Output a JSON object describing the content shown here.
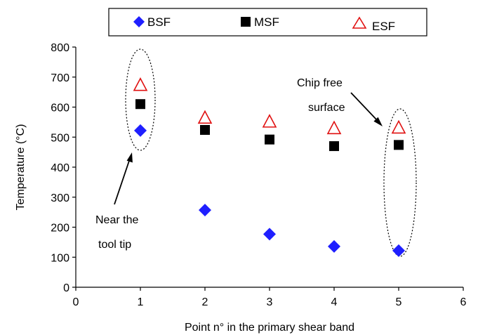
{
  "chart_data": {
    "type": "scatter",
    "title": "",
    "xlabel": "Point n° in the primary shear band",
    "ylabel": "Temperature (°C)",
    "xlim": [
      0,
      6
    ],
    "ylim": [
      0,
      800
    ],
    "x_ticks": [
      0,
      1,
      2,
      3,
      4,
      5,
      6
    ],
    "y_ticks": [
      0,
      100,
      200,
      300,
      400,
      500,
      600,
      700,
      800
    ],
    "grid": false,
    "legend_position": "top",
    "series": [
      {
        "name": "BSF",
        "marker": "diamond",
        "color": "#1f1fff",
        "x": [
          1,
          2,
          3,
          4,
          5
        ],
        "values": [
          522,
          257,
          177,
          136,
          122
        ]
      },
      {
        "name": "MSF",
        "marker": "square",
        "color": "#000000",
        "x": [
          1,
          2,
          3,
          4,
          5
        ],
        "values": [
          610,
          524,
          492,
          470,
          474
        ]
      },
      {
        "name": "ESF",
        "marker": "triangle-open",
        "color": "#e01010",
        "x": [
          1,
          2,
          3,
          4,
          5
        ],
        "values": [
          672,
          563,
          550,
          528,
          530
        ]
      }
    ],
    "annotations": [
      {
        "text_lines": [
          "Near the",
          "tool tip"
        ],
        "arrow_to_x": 1,
        "arrow_to_y": 455
      },
      {
        "text_lines": [
          "Chip free",
          "surface"
        ],
        "arrow_to_x": 4.85,
        "arrow_to_y": 540
      }
    ],
    "highlights": [
      {
        "shape": "dotted-ellipse",
        "x": 1,
        "y_range": [
          460,
          720
        ]
      },
      {
        "shape": "dotted-ellipse",
        "x": 5,
        "y_range": [
          95,
          590
        ]
      }
    ]
  }
}
